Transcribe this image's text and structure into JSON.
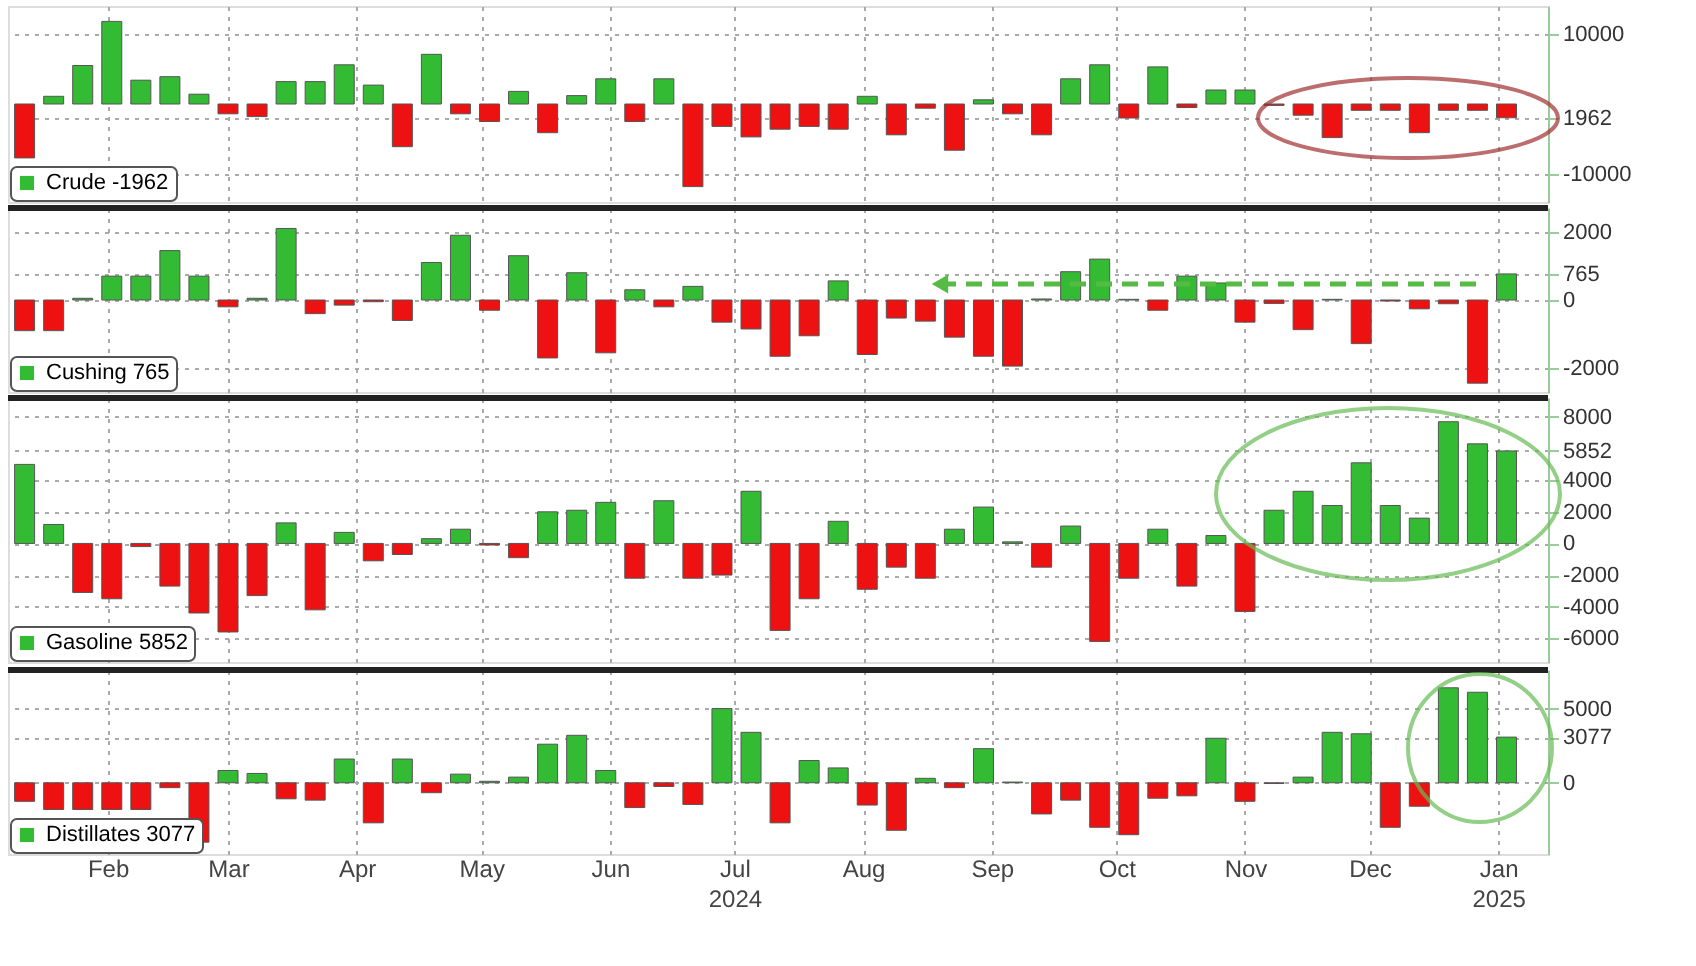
{
  "chart_data": [
    {
      "type": "bar",
      "tick_labels": "y",
      "grid": true,
      "legend": "bottom left",
      "x": [
        "2024-01-12",
        "2024-01-19",
        "2024-01-26",
        "2024-02-02",
        "2024-02-09",
        "2024-02-16",
        "2024-02-23",
        "2024-03-01",
        "2024-03-08",
        "2024-03-15",
        "2024-03-22",
        "2024-03-29",
        "2024-04-05",
        "2024-04-12",
        "2024-04-19",
        "2024-04-26",
        "2024-05-03",
        "2024-05-10",
        "2024-05-17",
        "2024-05-24",
        "2024-05-31",
        "2024-06-07",
        "2024-06-14",
        "2024-06-21",
        "2024-06-28",
        "2024-07-05",
        "2024-07-12",
        "2024-07-19",
        "2024-07-26",
        "2024-08-02",
        "2024-08-09",
        "2024-08-16",
        "2024-08-23",
        "2024-08-30",
        "2024-09-06",
        "2024-09-13",
        "2024-09-20",
        "2024-09-27",
        "2024-10-04",
        "2024-10-11",
        "2024-10-18",
        "2024-10-25",
        "2024-11-01",
        "2024-11-08",
        "2024-11-15",
        "2024-11-22",
        "2024-11-29",
        "2024-12-06",
        "2024-12-13",
        "2024-12-20",
        "2024-12-27",
        "2025-01-03"
      ],
      "xlim": [
        "2024-01-08",
        "2025-01-13"
      ],
      "ylim": [
        -14000,
        14000
      ],
      "yticks": [
        10000,
        {
          "value": -1962,
          "label": "1962"
        },
        -10000
      ],
      "series": [
        {
          "name": "Crude -1962",
          "color": "#33bb33",
          "values": [
            -7700,
            1100,
            5500,
            11800,
            3400,
            3900,
            1400,
            -1400,
            -1800,
            3200,
            3200,
            5600,
            2700,
            -6100,
            7100,
            -1400,
            -2500,
            1800,
            -4100,
            1200,
            3600,
            -2500,
            3600,
            -11800,
            -3200,
            -4700,
            -3600,
            -3200,
            -3600,
            1100,
            -4400,
            -600,
            -6600,
            600,
            -1400,
            -4400,
            3600,
            5600,
            -2000,
            5300,
            -500,
            2000,
            2000,
            -200,
            -1600,
            -4800,
            -900,
            -900,
            -4100,
            -900,
            -900,
            -1962
          ],
          "colors": [
            "#ee1111",
            "#33bb33",
            "#33bb33",
            "#33bb33",
            "#33bb33",
            "#33bb33",
            "#33bb33",
            "#ee1111",
            "#ee1111",
            "#33bb33",
            "#33bb33",
            "#33bb33",
            "#33bb33",
            "#ee1111",
            "#33bb33",
            "#ee1111",
            "#ee1111",
            "#33bb33",
            "#ee1111",
            "#33bb33",
            "#33bb33",
            "#ee1111",
            "#33bb33",
            "#ee1111",
            "#ee1111",
            "#ee1111",
            "#ee1111",
            "#ee1111",
            "#ee1111",
            "#33bb33",
            "#ee1111",
            "#ee1111",
            "#ee1111",
            "#33bb33",
            "#ee1111",
            "#ee1111",
            "#33bb33",
            "#33bb33",
            "#ee1111",
            "#33bb33",
            "#ee1111",
            "#33bb33",
            "#33bb33",
            "#ee1111",
            "#ee1111",
            "#ee1111",
            "#ee1111",
            "#ee1111",
            "#ee1111",
            "#ee1111",
            "#ee1111",
            "#ee1111"
          ]
        }
      ]
    },
    {
      "type": "bar",
      "tick_labels": "y",
      "grid": true,
      "legend": "bottom left",
      "x": [
        "2024-01-12",
        "2024-01-19",
        "2024-01-26",
        "2024-02-02",
        "2024-02-09",
        "2024-02-16",
        "2024-02-23",
        "2024-03-01",
        "2024-03-08",
        "2024-03-15",
        "2024-03-22",
        "2024-03-29",
        "2024-04-05",
        "2024-04-12",
        "2024-04-19",
        "2024-04-26",
        "2024-05-03",
        "2024-05-10",
        "2024-05-17",
        "2024-05-24",
        "2024-05-31",
        "2024-06-07",
        "2024-06-14",
        "2024-06-21",
        "2024-06-28",
        "2024-07-05",
        "2024-07-12",
        "2024-07-19",
        "2024-07-26",
        "2024-08-02",
        "2024-08-09",
        "2024-08-16",
        "2024-08-23",
        "2024-08-30",
        "2024-09-06",
        "2024-09-13",
        "2024-09-20",
        "2024-09-27",
        "2024-10-04",
        "2024-10-11",
        "2024-10-18",
        "2024-10-25",
        "2024-11-01",
        "2024-11-08",
        "2024-11-15",
        "2024-11-22",
        "2024-11-29",
        "2024-12-06",
        "2024-12-13",
        "2024-12-20",
        "2024-12-27",
        "2025-01-03"
      ],
      "xlim": [
        "2024-01-08",
        "2025-01-13"
      ],
      "ylim": [
        -2700,
        2700
      ],
      "yticks": [
        2000,
        765,
        0,
        -2000
      ],
      "series": [
        {
          "name": "Cushing 765",
          "color": "#33bb33",
          "values": [
            -900,
            -900,
            50,
            700,
            700,
            1450,
            700,
            -200,
            50,
            2100,
            -400,
            -150,
            -50,
            -600,
            1100,
            1900,
            -300,
            1300,
            -1700,
            800,
            -1550,
            300,
            -200,
            400,
            -650,
            -850,
            -1650,
            -1050,
            560,
            -1600,
            -530,
            -620,
            -1090,
            -1650,
            -1940,
            30,
            830,
            1200,
            20,
            -300,
            700,
            500,
            -650,
            -100,
            -870,
            20,
            -1280,
            -30,
            -260,
            -110,
            -2440,
            765
          ],
          "colors": [
            "#ee1111",
            "#ee1111",
            "#33bb33",
            "#33bb33",
            "#33bb33",
            "#33bb33",
            "#33bb33",
            "#ee1111",
            "#33bb33",
            "#33bb33",
            "#ee1111",
            "#ee1111",
            "#ee1111",
            "#ee1111",
            "#33bb33",
            "#33bb33",
            "#ee1111",
            "#33bb33",
            "#ee1111",
            "#33bb33",
            "#ee1111",
            "#33bb33",
            "#ee1111",
            "#33bb33",
            "#ee1111",
            "#ee1111",
            "#ee1111",
            "#ee1111",
            "#33bb33",
            "#ee1111",
            "#ee1111",
            "#ee1111",
            "#ee1111",
            "#ee1111",
            "#ee1111",
            "#33bb33",
            "#33bb33",
            "#33bb33",
            "#33bb33",
            "#ee1111",
            "#33bb33",
            "#33bb33",
            "#ee1111",
            "#ee1111",
            "#ee1111",
            "#33bb33",
            "#ee1111",
            "#ee1111",
            "#ee1111",
            "#ee1111",
            "#ee1111",
            "#33bb33"
          ]
        }
      ]
    },
    {
      "type": "bar",
      "tick_labels": "y",
      "grid": true,
      "legend": "bottom left",
      "x": [
        "2024-01-12",
        "2024-01-19",
        "2024-01-26",
        "2024-02-02",
        "2024-02-09",
        "2024-02-16",
        "2024-02-23",
        "2024-03-01",
        "2024-03-08",
        "2024-03-15",
        "2024-03-22",
        "2024-03-29",
        "2024-04-05",
        "2024-04-12",
        "2024-04-19",
        "2024-04-26",
        "2024-05-03",
        "2024-05-10",
        "2024-05-17",
        "2024-05-24",
        "2024-05-31",
        "2024-06-07",
        "2024-06-14",
        "2024-06-21",
        "2024-06-28",
        "2024-07-05",
        "2024-07-12",
        "2024-07-19",
        "2024-07-26",
        "2024-08-02",
        "2024-08-09",
        "2024-08-16",
        "2024-08-23",
        "2024-08-30",
        "2024-09-06",
        "2024-09-13",
        "2024-09-20",
        "2024-09-27",
        "2024-10-04",
        "2024-10-11",
        "2024-10-18",
        "2024-10-25",
        "2024-11-01",
        "2024-11-08",
        "2024-11-15",
        "2024-11-22",
        "2024-11-29",
        "2024-12-06",
        "2024-12-13",
        "2024-12-20",
        "2024-12-27",
        "2025-01-03"
      ],
      "xlim": [
        "2024-01-08",
        "2025-01-13"
      ],
      "ylim": [
        -7500,
        9200
      ],
      "yticks": [
        8000,
        5852,
        4000,
        2000,
        0,
        -2000,
        -4000,
        -6000
      ],
      "series": [
        {
          "name": "Gasoline 5852",
          "color": "#33bb33",
          "values": [
            5000,
            1200,
            -3100,
            -3500,
            -200,
            -2700,
            -4400,
            -5600,
            -3300,
            1300,
            -4200,
            700,
            -1100,
            -700,
            300,
            900,
            -100,
            -900,
            2000,
            2100,
            2600,
            -2200,
            2700,
            -2200,
            -2000,
            3300,
            -5500,
            -3500,
            1400,
            -2900,
            -1500,
            -2200,
            900,
            2300,
            100,
            -1500,
            1100,
            -6200,
            -2200,
            900,
            -2700,
            500,
            -4300,
            2100,
            3300,
            2400,
            5100,
            2400,
            1600,
            7700,
            6300,
            5852
          ],
          "colors": [
            "#33bb33",
            "#33bb33",
            "#ee1111",
            "#ee1111",
            "#ee1111",
            "#ee1111",
            "#ee1111",
            "#ee1111",
            "#ee1111",
            "#33bb33",
            "#ee1111",
            "#33bb33",
            "#ee1111",
            "#ee1111",
            "#33bb33",
            "#33bb33",
            "#ee1111",
            "#ee1111",
            "#33bb33",
            "#33bb33",
            "#33bb33",
            "#ee1111",
            "#33bb33",
            "#ee1111",
            "#ee1111",
            "#33bb33",
            "#ee1111",
            "#ee1111",
            "#33bb33",
            "#ee1111",
            "#ee1111",
            "#ee1111",
            "#33bb33",
            "#33bb33",
            "#33bb33",
            "#ee1111",
            "#33bb33",
            "#ee1111",
            "#ee1111",
            "#33bb33",
            "#ee1111",
            "#33bb33",
            "#ee1111",
            "#33bb33",
            "#33bb33",
            "#33bb33",
            "#33bb33",
            "#33bb33",
            "#33bb33",
            "#33bb33",
            "#33bb33",
            "#33bb33"
          ]
        }
      ]
    },
    {
      "type": "bar",
      "grid": true,
      "legend": "bottom left",
      "x": [
        "2024-01-12",
        "2024-01-19",
        "2024-01-26",
        "2024-02-02",
        "2024-02-09",
        "2024-02-16",
        "2024-02-23",
        "2024-03-01",
        "2024-03-08",
        "2024-03-15",
        "2024-03-22",
        "2024-03-29",
        "2024-04-05",
        "2024-04-12",
        "2024-04-19",
        "2024-04-26",
        "2024-05-03",
        "2024-05-10",
        "2024-05-17",
        "2024-05-24",
        "2024-05-31",
        "2024-06-07",
        "2024-06-14",
        "2024-06-21",
        "2024-06-28",
        "2024-07-05",
        "2024-07-12",
        "2024-07-19",
        "2024-07-26",
        "2024-08-02",
        "2024-08-09",
        "2024-08-16",
        "2024-08-23",
        "2024-08-30",
        "2024-09-06",
        "2024-09-13",
        "2024-09-20",
        "2024-09-27",
        "2024-10-04",
        "2024-10-11",
        "2024-10-18",
        "2024-10-25",
        "2024-11-01",
        "2024-11-08",
        "2024-11-15",
        "2024-11-22",
        "2024-11-29",
        "2024-12-06",
        "2024-12-13",
        "2024-12-20",
        "2024-12-27",
        "2025-01-03"
      ],
      "xlim": [
        "2024-01-08",
        "2025-01-13"
      ],
      "xticks": [
        {
          "value": "2024-02-01",
          "label": "Feb"
        },
        {
          "value": "2024-03-01",
          "label": "Mar"
        },
        {
          "value": "2024-04-01",
          "label": "Apr"
        },
        {
          "value": "2024-05-01",
          "label": "May"
        },
        {
          "value": "2024-06-01",
          "label": "Jun"
        },
        {
          "value": "2024-07-01",
          "label": "Jul\n2024"
        },
        {
          "value": "2024-08-01",
          "label": "Aug"
        },
        {
          "value": "2024-09-01",
          "label": "Sep"
        },
        {
          "value": "2024-10-01",
          "label": "Oct"
        },
        {
          "value": "2024-11-01",
          "label": "Nov"
        },
        {
          "value": "2024-12-01",
          "label": "Dec"
        },
        {
          "value": "2025-01-01",
          "label": "Jan\n2025"
        }
      ],
      "ylim": [
        -4800,
        7600
      ],
      "yticks": [
        5000,
        3077,
        0
      ],
      "series": [
        {
          "name": "Distillates 3077",
          "color": "#33bb33",
          "values": [
            -1250,
            -1800,
            -1800,
            -1800,
            -1800,
            -330,
            -4000,
            830,
            630,
            -1080,
            -1170,
            1600,
            -2700,
            1600,
            -670,
            580,
            100,
            380,
            2600,
            3200,
            830,
            -1670,
            -250,
            -1460,
            5000,
            3400,
            -2700,
            1500,
            1000,
            -1500,
            -3200,
            300,
            -330,
            2300,
            50,
            -2100,
            -1170,
            -3000,
            -3500,
            -1040,
            -880,
            3000,
            -1250,
            -50,
            380,
            3400,
            3300,
            -3000,
            -1580,
            6400,
            6100,
            3077
          ],
          "colors": [
            "#ee1111",
            "#ee1111",
            "#ee1111",
            "#ee1111",
            "#ee1111",
            "#ee1111",
            "#ee1111",
            "#33bb33",
            "#33bb33",
            "#ee1111",
            "#ee1111",
            "#33bb33",
            "#ee1111",
            "#33bb33",
            "#ee1111",
            "#33bb33",
            "#33bb33",
            "#33bb33",
            "#33bb33",
            "#33bb33",
            "#33bb33",
            "#ee1111",
            "#ee1111",
            "#ee1111",
            "#33bb33",
            "#33bb33",
            "#ee1111",
            "#33bb33",
            "#33bb33",
            "#ee1111",
            "#ee1111",
            "#33bb33",
            "#ee1111",
            "#33bb33",
            "#33bb33",
            "#ee1111",
            "#ee1111",
            "#ee1111",
            "#ee1111",
            "#ee1111",
            "#ee1111",
            "#33bb33",
            "#ee1111",
            "#ee1111",
            "#33bb33",
            "#33bb33",
            "#33bb33",
            "#ee1111",
            "#ee1111",
            "#33bb33",
            "#33bb33",
            "#33bb33"
          ]
        }
      ]
    }
  ]
}
